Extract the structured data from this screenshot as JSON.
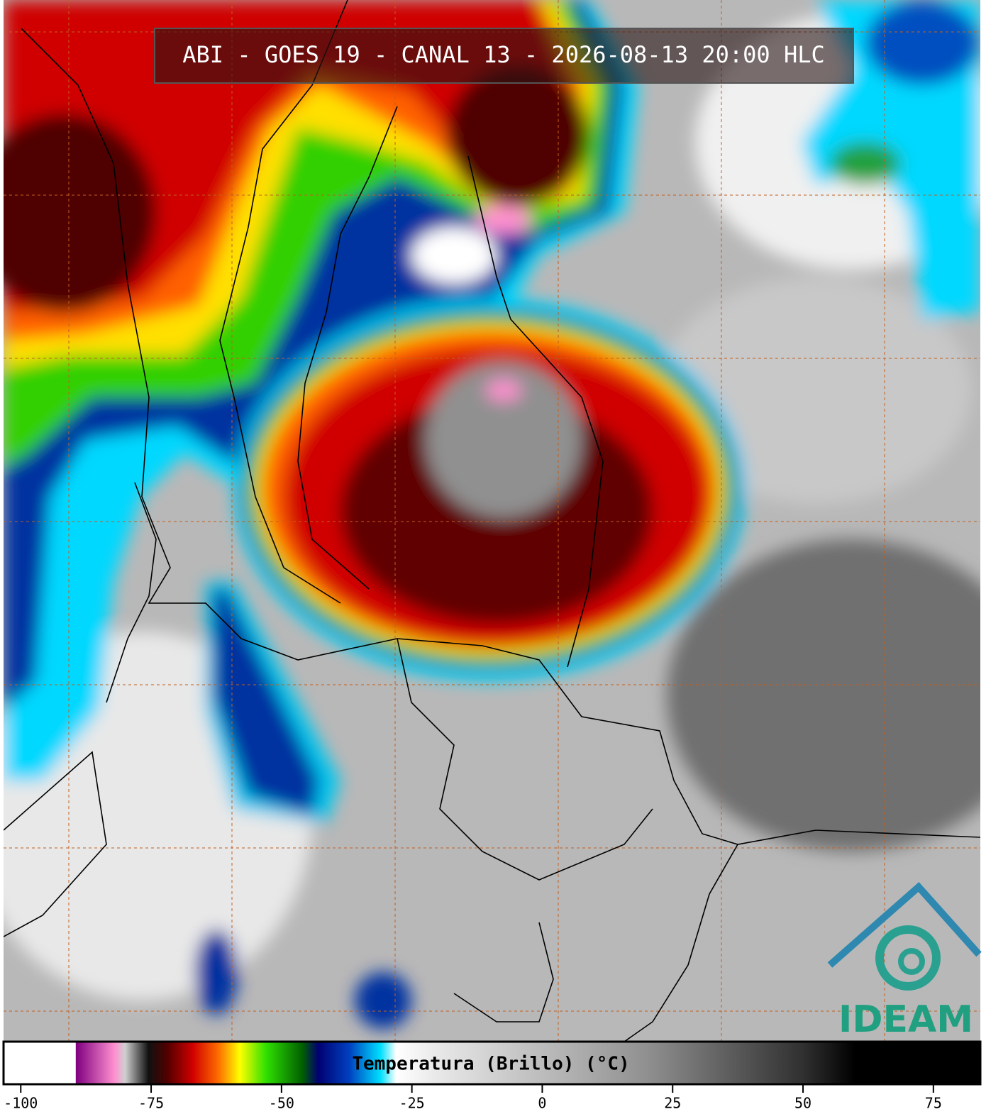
{
  "title": "ABI - GOES 19 - CANAL 13 - 2026-08-13 20:00 HLC",
  "logo": "IDEAM",
  "colorbar": {
    "label": "Temperatura (Brillo) (°C)",
    "xlim": [
      -103.3,
      84
    ],
    "xticks": [
      -100,
      -75,
      -50,
      -25,
      0,
      25,
      50,
      75
    ],
    "colors": [
      {
        "value": -103.3,
        "color": "#ffffff"
      },
      {
        "value": -89.5,
        "color": "#ffffff"
      },
      {
        "value": -89.4,
        "color": "#800080"
      },
      {
        "value": -82,
        "color": "#ff90d0"
      },
      {
        "value": -80,
        "color": "#d0d0d0"
      },
      {
        "value": -75.5,
        "color": "#101010"
      },
      {
        "value": -72,
        "color": "#500000"
      },
      {
        "value": -67,
        "color": "#d00000"
      },
      {
        "value": -62,
        "color": "#ff7000"
      },
      {
        "value": -58,
        "color": "#ffff00"
      },
      {
        "value": -53,
        "color": "#30e000"
      },
      {
        "value": -46,
        "color": "#006000"
      },
      {
        "value": -43,
        "color": "#000070"
      },
      {
        "value": -37,
        "color": "#0040c0"
      },
      {
        "value": -31,
        "color": "#00e0ff"
      },
      {
        "value": -28,
        "color": "#ffffff"
      },
      {
        "value": -20,
        "color": "#e8e8e8"
      },
      {
        "value": 20,
        "color": "#909090"
      },
      {
        "value": 50,
        "color": "#303030"
      },
      {
        "value": 60,
        "color": "#000000"
      },
      {
        "value": 84,
        "color": "#000000"
      }
    ]
  }
}
